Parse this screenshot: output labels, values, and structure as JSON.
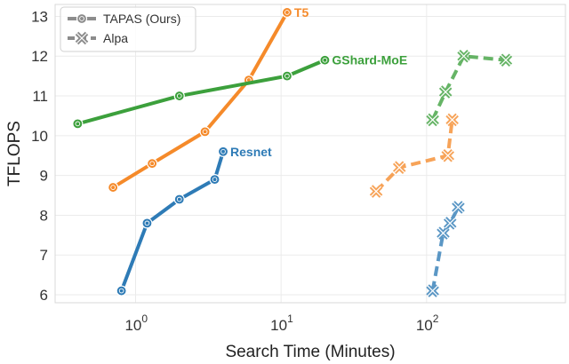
{
  "chart_data": {
    "type": "line",
    "xlabel": "Search Time (Minutes)",
    "ylabel": "TFLOPS",
    "xscale": "log",
    "xlim": [
      0.28,
      900
    ],
    "ylim": [
      5.8,
      13.3
    ],
    "x_ticks": [
      {
        "value": 1,
        "base": "10",
        "exp": "0"
      },
      {
        "value": 10,
        "base": "10",
        "exp": "1"
      },
      {
        "value": 100,
        "base": "10",
        "exp": "2"
      }
    ],
    "y_ticks": [
      6,
      7,
      8,
      9,
      10,
      11,
      12,
      13
    ],
    "grid": true,
    "legend": {
      "position": "top-left",
      "entries": [
        {
          "label": "TAPAS (Ours)",
          "style": "solid",
          "marker": "circle"
        },
        {
          "label": "Alpa",
          "style": "dashed",
          "marker": "x"
        }
      ]
    },
    "colors": {
      "Resnet": "#2e7bb6",
      "T5": "#f58a2a",
      "GShard-MoE": "#3ca03c"
    },
    "series": [
      {
        "name": "Resnet",
        "method": "TAPAS (Ours)",
        "x": [
          0.8,
          1.2,
          2.0,
          3.5,
          4.0
        ],
        "y": [
          6.1,
          7.8,
          8.4,
          8.9,
          9.6
        ]
      },
      {
        "name": "T5",
        "method": "TAPAS (Ours)",
        "x": [
          0.7,
          1.3,
          3.0,
          6.0,
          11.0
        ],
        "y": [
          8.7,
          9.3,
          10.1,
          11.4,
          13.1
        ]
      },
      {
        "name": "GShard-MoE",
        "method": "TAPAS (Ours)",
        "x": [
          0.4,
          2.0,
          11.0,
          20.0
        ],
        "y": [
          10.3,
          11.0,
          11.5,
          11.9
        ]
      },
      {
        "name": "Resnet",
        "method": "Alpa",
        "x": [
          110,
          130,
          145,
          165
        ],
        "y": [
          6.1,
          7.55,
          7.8,
          8.2
        ]
      },
      {
        "name": "T5",
        "method": "Alpa",
        "x": [
          45,
          65,
          140,
          150
        ],
        "y": [
          8.6,
          9.2,
          9.5,
          10.4
        ]
      },
      {
        "name": "GShard-MoE",
        "method": "Alpa",
        "x": [
          110,
          135,
          180,
          350
        ],
        "y": [
          10.4,
          11.1,
          12.0,
          11.9
        ]
      }
    ]
  }
}
